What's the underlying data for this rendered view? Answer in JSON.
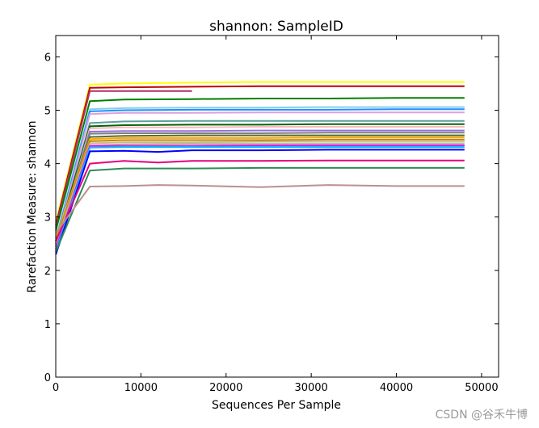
{
  "chart_data": {
    "type": "line",
    "title": "shannon: SampleID",
    "xlabel": "Sequences Per Sample",
    "ylabel": "Rarefaction Measure: shannon",
    "xlim": [
      0,
      52000
    ],
    "ylim": [
      0,
      6.4
    ],
    "xticks": [
      0,
      10000,
      20000,
      30000,
      40000,
      50000
    ],
    "yticks": [
      0,
      1,
      2,
      3,
      4,
      5,
      6
    ],
    "grid": false,
    "series": [
      {
        "color": "#ffff00",
        "x": [
          10,
          4000,
          8000,
          16000,
          24000,
          32000,
          40000,
          48000
        ],
        "y": [
          2.9,
          5.48,
          5.5,
          5.52,
          5.53,
          5.53,
          5.53,
          5.53
        ]
      },
      {
        "color": "#c00000",
        "x": [
          10,
          4000,
          8000,
          16000,
          24000,
          32000,
          40000,
          48000
        ],
        "y": [
          2.85,
          5.42,
          5.43,
          5.44,
          5.45,
          5.45,
          5.45,
          5.45
        ]
      },
      {
        "color": "#b03060",
        "x": [
          10,
          4000,
          8000,
          16000
        ],
        "y": [
          2.8,
          5.36,
          5.36,
          5.36
        ]
      },
      {
        "color": "#008000",
        "x": [
          10,
          4000,
          8000,
          16000,
          24000,
          32000,
          40000,
          48000
        ],
        "y": [
          2.75,
          5.17,
          5.2,
          5.21,
          5.22,
          5.22,
          5.23,
          5.23
        ]
      },
      {
        "color": "#87ceeb",
        "x": [
          10,
          4000,
          8000,
          16000,
          24000,
          32000,
          40000,
          48000
        ],
        "y": [
          2.6,
          5.02,
          5.04,
          5.05,
          5.05,
          5.06,
          5.06,
          5.06
        ]
      },
      {
        "color": "#1e90ff",
        "x": [
          10,
          4000,
          8000,
          16000,
          24000,
          32000,
          40000,
          48000
        ],
        "y": [
          2.55,
          4.98,
          5.0,
          5.01,
          5.01,
          5.01,
          5.02,
          5.02
        ]
      },
      {
        "color": "#dda0dd",
        "x": [
          10,
          4000,
          8000,
          16000,
          24000,
          32000,
          40000,
          48000
        ],
        "y": [
          2.5,
          4.93,
          4.95,
          4.95,
          4.96,
          4.96,
          4.96,
          4.96
        ]
      },
      {
        "color": "#5f9ea0",
        "x": [
          10,
          4000,
          8000,
          16000,
          24000,
          32000,
          40000,
          48000
        ],
        "y": [
          2.45,
          4.76,
          4.79,
          4.8,
          4.8,
          4.8,
          4.8,
          4.8
        ]
      },
      {
        "color": "#006400",
        "x": [
          10,
          4000,
          8000,
          16000,
          24000,
          32000,
          40000,
          48000
        ],
        "y": [
          2.5,
          4.7,
          4.72,
          4.73,
          4.73,
          4.74,
          4.74,
          4.74
        ]
      },
      {
        "color": "#ffb6c1",
        "x": [
          10,
          4000,
          8000,
          16000,
          24000,
          32000,
          40000,
          48000
        ],
        "y": [
          2.4,
          4.66,
          4.68,
          4.68,
          4.69,
          4.69,
          4.69,
          4.69
        ]
      },
      {
        "color": "#9370db",
        "x": [
          10,
          4000,
          8000,
          16000,
          24000,
          32000,
          40000,
          48000
        ],
        "y": [
          2.45,
          4.6,
          4.61,
          4.61,
          4.62,
          4.62,
          4.62,
          4.62
        ]
      },
      {
        "color": "#808080",
        "x": [
          10,
          4000,
          8000,
          16000,
          24000,
          32000,
          40000,
          48000
        ],
        "y": [
          2.5,
          4.56,
          4.57,
          4.57,
          4.57,
          4.58,
          4.58,
          4.58
        ]
      },
      {
        "color": "#556b2f",
        "x": [
          10,
          4000,
          8000,
          16000,
          24000,
          32000,
          40000,
          48000
        ],
        "y": [
          2.55,
          4.5,
          4.52,
          4.53,
          4.53,
          4.53,
          4.53,
          4.53
        ]
      },
      {
        "color": "#ffa500",
        "x": [
          10,
          4000,
          8000,
          16000,
          24000,
          32000,
          40000,
          48000
        ],
        "y": [
          2.6,
          4.46,
          4.48,
          4.48,
          4.48,
          4.49,
          4.49,
          4.49
        ]
      },
      {
        "color": "#b8860b",
        "x": [
          10,
          4000,
          8000,
          16000,
          24000,
          32000,
          40000,
          48000
        ],
        "y": [
          2.55,
          4.42,
          4.44,
          4.44,
          4.44,
          4.45,
          4.45,
          4.45
        ]
      },
      {
        "color": "#d2b48c",
        "x": [
          10,
          4000,
          8000,
          16000,
          24000,
          32000,
          40000,
          48000
        ],
        "y": [
          2.5,
          4.38,
          4.4,
          4.4,
          4.41,
          4.41,
          4.41,
          4.41
        ]
      },
      {
        "color": "#8fbc8f",
        "x": [
          10,
          4000,
          8000,
          16000,
          24000,
          32000,
          40000,
          48000
        ],
        "y": [
          2.45,
          4.34,
          4.36,
          4.37,
          4.37,
          4.37,
          4.37,
          4.37
        ]
      },
      {
        "color": "#ff00ff",
        "x": [
          10,
          4000,
          8000,
          16000,
          24000,
          32000,
          40000,
          48000
        ],
        "y": [
          2.4,
          4.33,
          4.33,
          4.33,
          4.34,
          4.34,
          4.34,
          4.34
        ]
      },
      {
        "color": "#00bfff",
        "x": [
          10,
          4000,
          8000,
          16000,
          24000,
          32000,
          40000,
          48000
        ],
        "y": [
          2.35,
          4.3,
          4.31,
          4.31,
          4.31,
          4.31,
          4.31,
          4.31
        ]
      },
      {
        "color": "#0000ff",
        "x": [
          10,
          4000,
          8000,
          12000,
          16000,
          24000,
          32000,
          40000,
          48000
        ],
        "y": [
          2.3,
          4.23,
          4.24,
          4.22,
          4.25,
          4.25,
          4.26,
          4.26,
          4.26
        ]
      },
      {
        "color": "#e6007e",
        "x": [
          10,
          4000,
          8000,
          12000,
          16000,
          24000,
          32000,
          40000,
          48000
        ],
        "y": [
          2.55,
          4.0,
          4.05,
          4.02,
          4.05,
          4.05,
          4.06,
          4.06,
          4.06
        ]
      },
      {
        "color": "#2e8b57",
        "x": [
          10,
          4000,
          8000,
          16000,
          24000,
          32000,
          40000,
          48000
        ],
        "y": [
          2.35,
          3.87,
          3.91,
          3.91,
          3.92,
          3.92,
          3.92,
          3.92
        ]
      },
      {
        "color": "#bc8f8f",
        "x": [
          10,
          4000,
          8000,
          12000,
          16000,
          24000,
          32000,
          40000,
          48000
        ],
        "y": [
          2.7,
          3.57,
          3.58,
          3.6,
          3.59,
          3.56,
          3.6,
          3.58,
          3.58
        ]
      }
    ]
  },
  "watermark": "CSDN @谷禾牛博"
}
